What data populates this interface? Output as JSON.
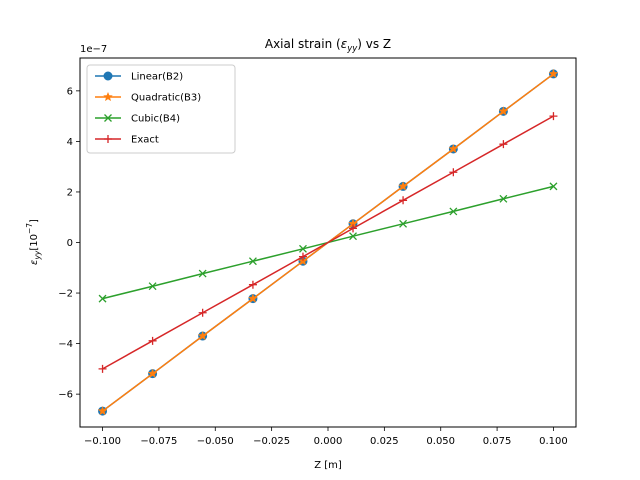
{
  "chart_data": {
    "type": "line",
    "title": "Axial strain (ε_yy) vs Z",
    "xlabel": "Z [m]",
    "ylabel": "ε_yy[10^-7]",
    "y_offset_label": "1e−7",
    "xlim": [
      -0.11,
      0.11
    ],
    "ylim": [
      -7.3,
      7.3
    ],
    "xticks": [
      -0.1,
      -0.075,
      -0.05,
      -0.025,
      0.0,
      0.025,
      0.05,
      0.075,
      0.1
    ],
    "xtick_labels": [
      "−0.100",
      "−0.075",
      "−0.050",
      "−0.025",
      "0.000",
      "0.025",
      "0.050",
      "0.075",
      "0.100"
    ],
    "yticks": [
      -6,
      -4,
      -2,
      0,
      2,
      4,
      6
    ],
    "ytick_labels": [
      "−6",
      "−4",
      "−2",
      "0",
      "2",
      "4",
      "6"
    ],
    "grid": false,
    "legend_position": "top-left",
    "x": [
      -0.1,
      -0.0778,
      -0.0556,
      -0.0333,
      -0.0111,
      0.0111,
      0.0333,
      0.0556,
      0.0778,
      0.1
    ],
    "series": [
      {
        "name": "Linear(B2)",
        "color": "#1f77b4",
        "marker": "circle",
        "values": [
          -6.67,
          -5.19,
          -3.7,
          -2.22,
          -0.74,
          0.74,
          2.22,
          3.7,
          5.19,
          6.67
        ]
      },
      {
        "name": "Quadratic(B3)",
        "color": "#ff7f0e",
        "marker": "star",
        "values": [
          -6.67,
          -5.19,
          -3.7,
          -2.22,
          -0.74,
          0.74,
          2.22,
          3.7,
          5.19,
          6.67
        ]
      },
      {
        "name": "Cubic(B4)",
        "color": "#2ca02c",
        "marker": "x",
        "values": [
          -2.22,
          -1.73,
          -1.23,
          -0.74,
          -0.25,
          0.25,
          0.74,
          1.23,
          1.73,
          2.22
        ]
      },
      {
        "name": "Exact",
        "color": "#d62728",
        "marker": "plus",
        "values": [
          -5.0,
          -3.89,
          -2.78,
          -1.67,
          -0.56,
          0.56,
          1.67,
          2.78,
          3.89,
          5.0
        ]
      }
    ]
  }
}
